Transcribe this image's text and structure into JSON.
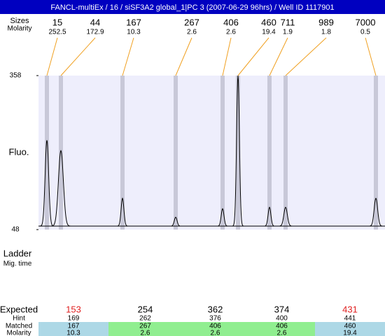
{
  "chart_data": {
    "type": "electropherogram",
    "title": "FANCL-multiEx / 16 / siSF3A2 global_1|PC 3 (2007-06-29 96hrs) / Well ID 1117901",
    "size_label": "Sizes",
    "molarity_label": "Molarity",
    "ylabel": "Fluo.",
    "ylim": [
      48,
      358
    ],
    "yticks": [
      48,
      358
    ],
    "baseline": 55,
    "line_color": "#f0a020",
    "band_color": "#c8c8d8",
    "plot_background": "#eeeefc",
    "peaks": {
      "sizes": [
        15,
        44,
        167,
        267,
        406,
        460,
        711,
        989,
        7000
      ],
      "molarity": [
        252.5,
        172.9,
        10.3,
        2.6,
        2.6,
        19.4,
        1.9,
        1.8,
        0.5
      ],
      "heights": [
        228,
        207,
        111,
        73,
        90,
        358,
        93,
        93,
        111
      ]
    },
    "ladder_label": "Ladder",
    "migration_label": "Mig. time",
    "table": {
      "row_labels": [
        "Expected",
        "Hint",
        "Matched",
        "Molarity"
      ],
      "expected": [
        153,
        254,
        362,
        374,
        431
      ],
      "expected_colors": [
        "#e02020",
        "#000000",
        "#000000",
        "#000000",
        "#e02020"
      ],
      "hint": [
        169,
        262,
        376,
        400,
        441
      ],
      "matched": [
        167,
        267,
        406,
        406,
        460
      ],
      "molarity": [
        10.3,
        2.6,
        2.6,
        2.6,
        19.4
      ],
      "cell_colors": [
        "#add8e6",
        "#90ee90",
        "#90ee90",
        "#90ee90",
        "#add8e6"
      ]
    }
  }
}
